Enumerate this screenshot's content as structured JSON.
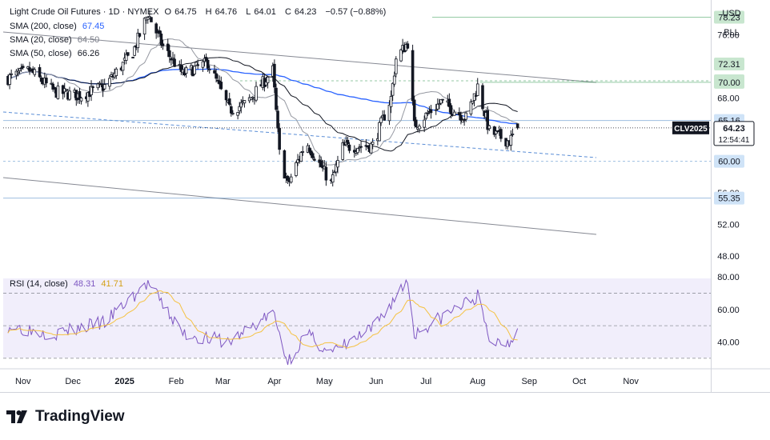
{
  "header": {
    "symbol": "Light Crude Oil Futures · 1D · NYMEX",
    "o_label": "O",
    "o": "64.75",
    "h_label": "H",
    "h": "64.76",
    "l_label": "L",
    "l": "64.01",
    "c_label": "C",
    "c": "64.23",
    "change": "−0.57 (−0.88%)"
  },
  "indicators": [
    {
      "label": "SMA (200, close)",
      "value": "67.45",
      "color": "#2962ff"
    },
    {
      "label": "SMA (20, close)",
      "value": "64.50",
      "color": "#787b86"
    },
    {
      "label": "SMA (50, close)",
      "value": "66.26",
      "color": "#131722"
    }
  ],
  "rsi_legend": {
    "label": "RSI (14, close)",
    "value": "48.31",
    "ma_value": "41.71",
    "color": "#7e57c2",
    "ma_color": "#f5c242"
  },
  "sidebar": {
    "currency": "USD",
    "unit": "BLL"
  },
  "brand": {
    "name": "TradingView"
  },
  "price_tag": {
    "symbol": "CLV2025",
    "price": "64.23",
    "countdown": "12:54:41"
  },
  "chart_data": {
    "type": "candlestick",
    "x_axis_labels": [
      "Nov",
      "Dec",
      "2025",
      "Feb",
      "Mar",
      "Apr",
      "May",
      "Jun",
      "Jul",
      "Aug",
      "Sep",
      "Oct",
      "Nov"
    ],
    "price_axis_ticks": [
      "76.00",
      "68.00",
      "56.00",
      "52.00",
      "48.00"
    ],
    "price_range": [
      46,
      80
    ],
    "level_labels": [
      {
        "value": 78.23,
        "text": "78.23",
        "color": "#3d9f5a",
        "line": true
      },
      {
        "value": 72.31,
        "text": "72.31",
        "color": "#3d9f5a",
        "line": false
      },
      {
        "value": 70.19,
        "text": "70.19",
        "color": "#3d9f5a",
        "line": true
      },
      {
        "value": 70.0,
        "text": "70.00",
        "color": "#3d9f5a",
        "line": true
      },
      {
        "value": 65.16,
        "text": "65.16",
        "color": "#4f88c6",
        "line": true
      },
      {
        "value": 60.0,
        "text": "60.00",
        "color": "#4f88c6",
        "line": true
      },
      {
        "value": 55.35,
        "text": "55.35",
        "color": "#4f88c6",
        "line": true
      }
    ],
    "ohlc_anchors": [
      {
        "t": "2024-10-23",
        "close": 70.5
      },
      {
        "t": "2024-11-05",
        "close": 71.5
      },
      {
        "t": "2024-11-20",
        "close": 68.8
      },
      {
        "t": "2024-12-05",
        "close": 68.3
      },
      {
        "t": "2024-12-20",
        "close": 69.5
      },
      {
        "t": "2025-01-06",
        "close": 73.8
      },
      {
        "t": "2025-01-15",
        "close": 78.7
      },
      {
        "t": "2025-01-24",
        "close": 74.5
      },
      {
        "t": "2025-02-05",
        "close": 71.0
      },
      {
        "t": "2025-02-20",
        "close": 72.5
      },
      {
        "t": "2025-03-05",
        "close": 66.5
      },
      {
        "t": "2025-03-15",
        "close": 67.3
      },
      {
        "t": "2025-03-31",
        "close": 71.5
      },
      {
        "t": "2025-04-04",
        "close": 61.0
      },
      {
        "t": "2025-04-09",
        "close": 57.0
      },
      {
        "t": "2025-04-20",
        "close": 62.5
      },
      {
        "t": "2025-05-05",
        "close": 57.2
      },
      {
        "t": "2025-05-12",
        "close": 61.8
      },
      {
        "t": "2025-05-30",
        "close": 62.0
      },
      {
        "t": "2025-06-10",
        "close": 68.0
      },
      {
        "t": "2025-06-13",
        "close": 73.0
      },
      {
        "t": "2025-06-20",
        "close": 75.0
      },
      {
        "t": "2025-06-24",
        "close": 64.5
      },
      {
        "t": "2025-07-10",
        "close": 67.5
      },
      {
        "t": "2025-07-25",
        "close": 65.5
      },
      {
        "t": "2025-08-01",
        "close": 69.5
      },
      {
        "t": "2025-08-08",
        "close": 63.8
      },
      {
        "t": "2025-08-20",
        "close": 62.5
      },
      {
        "t": "2025-08-25",
        "close": 64.23
      }
    ],
    "rsi": {
      "levels": [
        70,
        50,
        30
      ],
      "axis_ticks": [
        "80.00",
        "60.00",
        "40.00"
      ],
      "range": [
        25,
        82
      ],
      "anchors": [
        {
          "t": "2024-10-23",
          "rsi": 50
        },
        {
          "t": "2024-11-20",
          "rsi": 45
        },
        {
          "t": "2024-12-20",
          "rsi": 52
        },
        {
          "t": "2025-01-15",
          "rsi": 76
        },
        {
          "t": "2025-02-05",
          "rsi": 45
        },
        {
          "t": "2025-03-05",
          "rsi": 40
        },
        {
          "t": "2025-03-31",
          "rsi": 58
        },
        {
          "t": "2025-04-09",
          "rsi": 28
        },
        {
          "t": "2025-04-20",
          "rsi": 45
        },
        {
          "t": "2025-05-05",
          "rsi": 33
        },
        {
          "t": "2025-05-30",
          "rsi": 48
        },
        {
          "t": "2025-06-20",
          "rsi": 78
        },
        {
          "t": "2025-06-24",
          "rsi": 45
        },
        {
          "t": "2025-07-10",
          "rsi": 55
        },
        {
          "t": "2025-08-01",
          "rsi": 68
        },
        {
          "t": "2025-08-08",
          "rsi": 40
        },
        {
          "t": "2025-08-20",
          "rsi": 40
        },
        {
          "t": "2025-08-25",
          "rsi": 48.31
        }
      ]
    }
  }
}
